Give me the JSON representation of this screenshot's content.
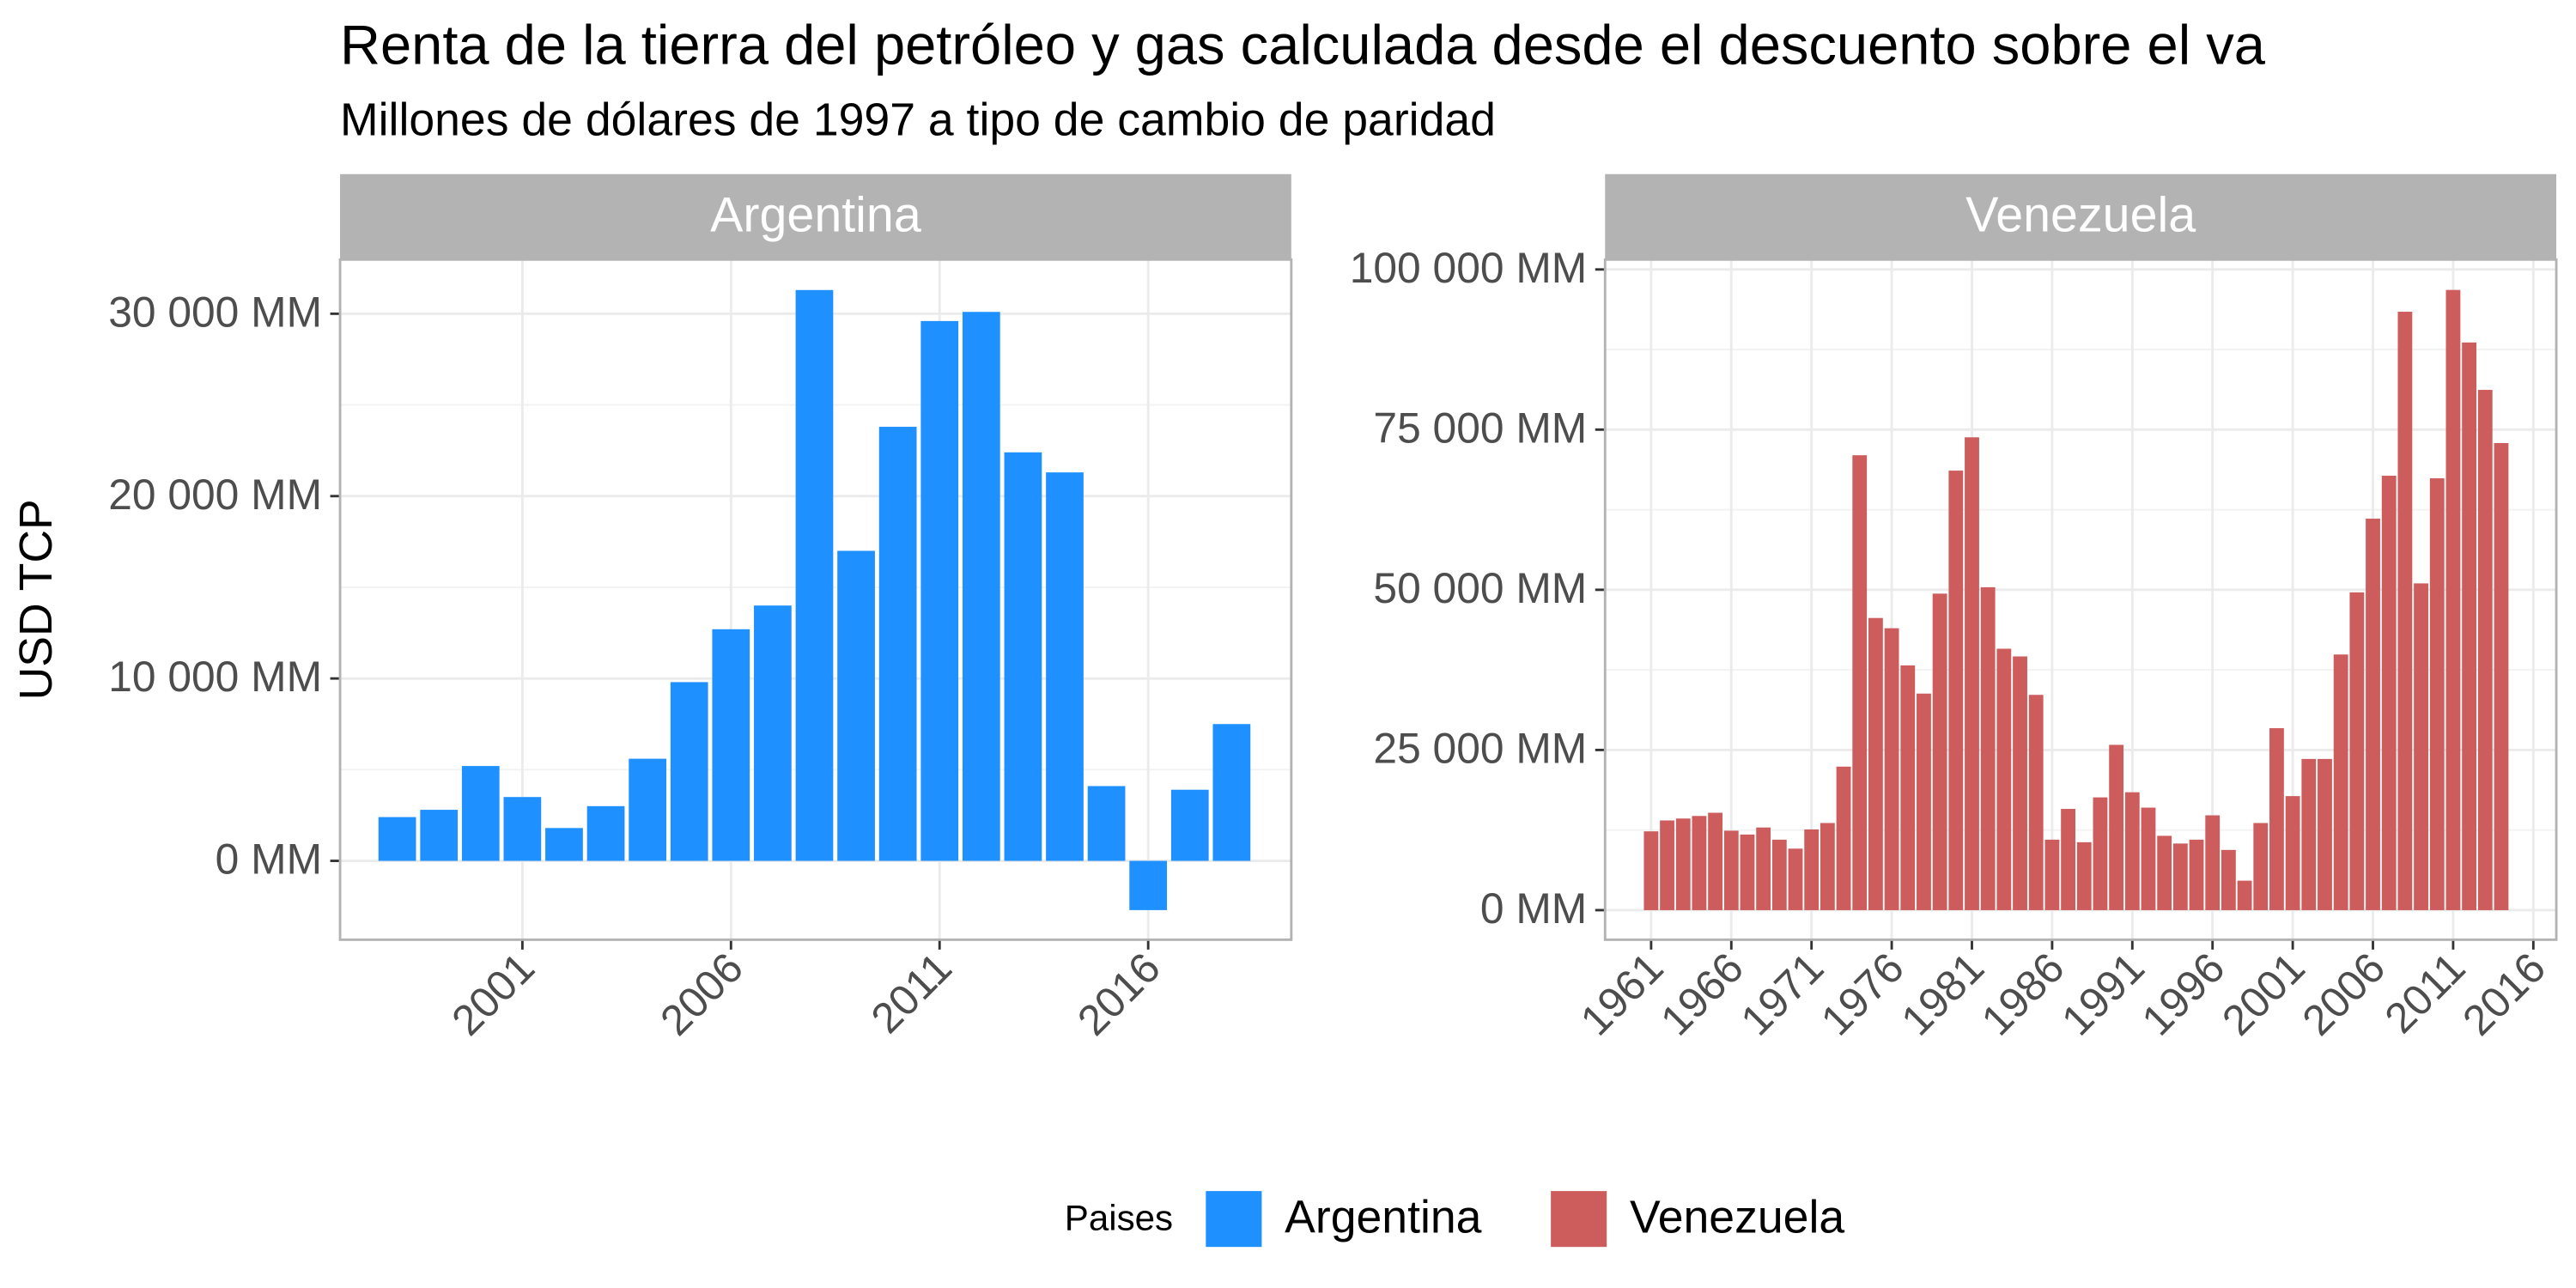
{
  "title": "Renta de la tierra del petróleo y gas calculada desde el descuento sobre el va",
  "subtitle": "Millones de dólares de 1997 a tipo de cambio de paridad",
  "ylabel": "USD TCP",
  "legend_title": "Paises",
  "chart_data": [
    {
      "type": "bar",
      "title": "Argentina",
      "x": [
        1998,
        1999,
        2000,
        2001,
        2002,
        2003,
        2004,
        2005,
        2006,
        2007,
        2008,
        2009,
        2010,
        2011,
        2012,
        2013,
        2014,
        2015,
        2016,
        2017,
        2018
      ],
      "series": [
        {
          "name": "Argentina",
          "color": "#1e90ff",
          "values": [
            2400,
            2800,
            5200,
            3500,
            1800,
            3000,
            5600,
            9800,
            12700,
            14000,
            31300,
            17000,
            23800,
            29600,
            30100,
            22400,
            21300,
            4100,
            -2700,
            3900,
            7500
          ]
        }
      ],
      "xlim": [
        1996.63,
        2019.43
      ],
      "xticks": [
        2001,
        2006,
        2011,
        2016
      ],
      "ylim": [
        -4324,
        32970
      ],
      "yticks": [
        {
          "value": 0,
          "label": "0 MM"
        },
        {
          "value": 10000,
          "label": "10 000 MM"
        },
        {
          "value": 20000,
          "label": "20 000 MM"
        },
        {
          "value": 30000,
          "label": "30 000 MM"
        }
      ],
      "grid": true
    },
    {
      "type": "bar",
      "title": "Venezuela",
      "x": [
        1961,
        1962,
        1963,
        1964,
        1965,
        1966,
        1967,
        1968,
        1969,
        1970,
        1971,
        1972,
        1973,
        1974,
        1975,
        1976,
        1977,
        1978,
        1979,
        1980,
        1981,
        1982,
        1983,
        1984,
        1985,
        1986,
        1987,
        1988,
        1989,
        1990,
        1991,
        1992,
        1993,
        1994,
        1995,
        1996,
        1997,
        1998,
        1999,
        2000,
        2001,
        2002,
        2003,
        2004,
        2005,
        2006,
        2007,
        2008,
        2009,
        2010,
        2011,
        2012,
        2013,
        2014
      ],
      "series": [
        {
          "name": "Venezuela",
          "color": "#cd5c5c",
          "values": [
            12300,
            14000,
            14300,
            14700,
            15200,
            12400,
            11800,
            12900,
            11000,
            9600,
            12600,
            13600,
            22400,
            71000,
            45600,
            44000,
            38200,
            33800,
            49400,
            68600,
            73800,
            50400,
            40800,
            39600,
            33600,
            11000,
            15800,
            10600,
            17600,
            25800,
            18400,
            16000,
            11600,
            10400,
            11000,
            14800,
            9400,
            4600,
            13600,
            28400,
            17800,
            23600,
            23600,
            39900,
            49600,
            61100,
            67800,
            93400,
            51000,
            67400,
            96800,
            88600,
            81200,
            72900
          ]
        }
      ],
      "xlim": [
        1958.13,
        2017.43
      ],
      "xticks": [
        1961,
        1966,
        1971,
        1976,
        1981,
        1986,
        1991,
        1996,
        2001,
        2006,
        2011,
        2016
      ],
      "ylim": [
        -4615,
        101540
      ],
      "yticks": [
        {
          "value": 0,
          "label": "0 MM"
        },
        {
          "value": 25000,
          "label": "25 000 MM"
        },
        {
          "value": 50000,
          "label": "50 000 MM"
        },
        {
          "value": 75000,
          "label": "75 000 MM"
        },
        {
          "value": 100000,
          "label": "100 000 MM"
        }
      ],
      "grid": true
    }
  ]
}
